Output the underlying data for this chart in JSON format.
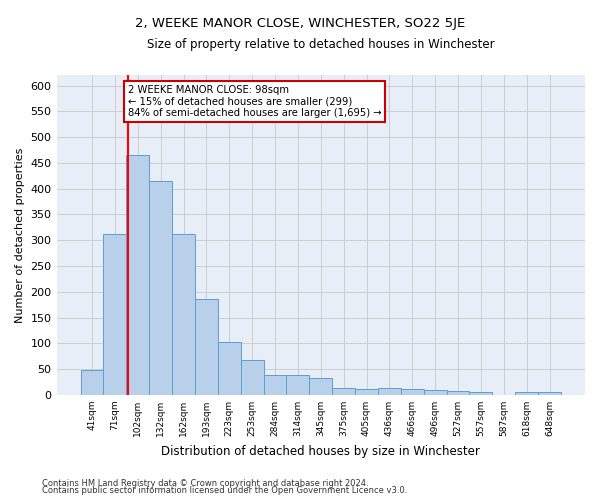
{
  "title": "2, WEEKE MANOR CLOSE, WINCHESTER, SO22 5JE",
  "subtitle": "Size of property relative to detached houses in Winchester",
  "xlabel": "Distribution of detached houses by size in Winchester",
  "ylabel": "Number of detached properties",
  "categories": [
    "41sqm",
    "71sqm",
    "102sqm",
    "132sqm",
    "162sqm",
    "193sqm",
    "223sqm",
    "253sqm",
    "284sqm",
    "314sqm",
    "345sqm",
    "375sqm",
    "405sqm",
    "436sqm",
    "466sqm",
    "496sqm",
    "527sqm",
    "557sqm",
    "587sqm",
    "618sqm",
    "648sqm"
  ],
  "values": [
    48,
    312,
    465,
    415,
    312,
    187,
    103,
    68,
    38,
    38,
    32,
    14,
    12,
    14,
    12,
    10,
    8,
    5,
    0,
    5,
    5
  ],
  "bar_color": "#b8d0ea",
  "bar_edge_color": "#5a9fd4",
  "grid_color": "#c8c8c8",
  "background_color": "#e8eef8",
  "ylim": [
    0,
    620
  ],
  "yticks": [
    0,
    50,
    100,
    150,
    200,
    250,
    300,
    350,
    400,
    450,
    500,
    550,
    600
  ],
  "red_line_x": 1.57,
  "annotation_line1": "2 WEEKE MANOR CLOSE: 98sqm",
  "annotation_line2": "← 15% of detached houses are smaller (299)",
  "annotation_line3": "84% of semi-detached houses are larger (1,695) →",
  "annotation_box_color": "#ffffff",
  "annotation_box_edge": "#cc0000",
  "footer_line1": "Contains HM Land Registry data © Crown copyright and database right 2024.",
  "footer_line2": "Contains public sector information licensed under the Open Government Licence v3.0."
}
